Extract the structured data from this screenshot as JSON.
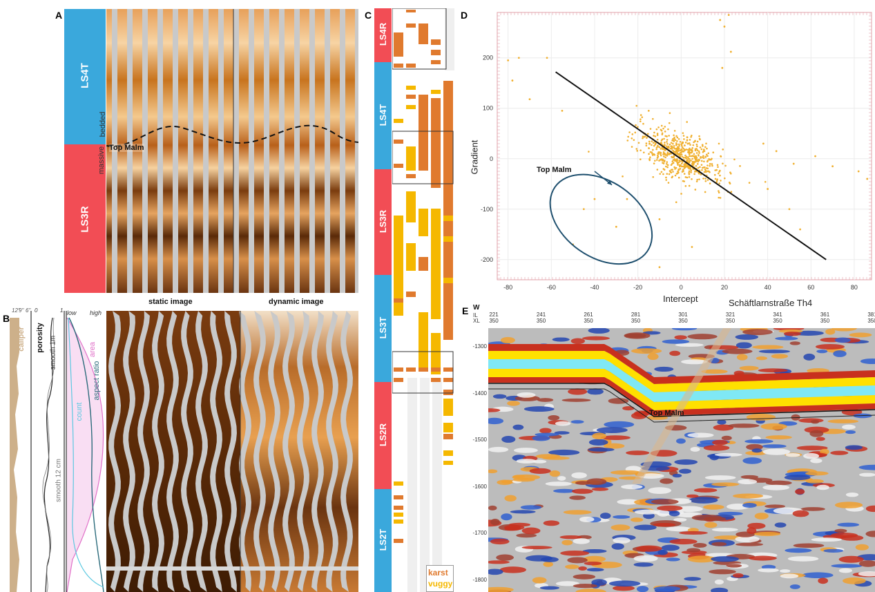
{
  "figure": {
    "panel_labels": [
      "A",
      "B",
      "C",
      "D",
      "E"
    ],
    "colors": {
      "LS_T": "#3aa8dc",
      "LS_R": "#f24d55",
      "karst": "#e07a2e",
      "vuggy": "#f5b800",
      "image_dark": "#5a2e08",
      "image_light": "#e8b070",
      "scatter": "#f0b030",
      "ellipse": "#1e4f6e",
      "seismic_red": "#c8301e",
      "seismic_blue": "#2446b0",
      "seismic_yellow": "#ffe000",
      "seismic_cyan": "#7fe8f5",
      "area_curve": "#e070c8",
      "aspect_curve": "#2a6a7a",
      "count_curve": "#5ac8e0",
      "caliper_fill": "#cdb08a"
    }
  },
  "panelA": {
    "zones": [
      {
        "label": "LS4T",
        "type": "T"
      },
      {
        "label": "LS3R",
        "type": "R"
      }
    ],
    "bedded": "bedded",
    "massive": "massive",
    "top_malm": "Top Malm",
    "static_caption": "static image",
    "dynamic_caption": "dynamic image"
  },
  "panelB": {
    "caliper": "caliper",
    "caliper_ticks": [
      "12\"",
      "9\"",
      "6\""
    ],
    "porosity": "porosity",
    "porosity_ticks": [
      "0",
      "1"
    ],
    "low": "low",
    "high": "high",
    "area": "area",
    "aspect_ratio": "aspect ratio",
    "count": "count",
    "smooth_1m": "smooth 1m",
    "smooth_12cm": "smooth 12 cm"
  },
  "panelC": {
    "zones": [
      {
        "label": "LS4R",
        "type": "R"
      },
      {
        "label": "LS4T",
        "type": "T"
      },
      {
        "label": "LS3R",
        "type": "R"
      },
      {
        "label": "LS3T",
        "type": "T"
      },
      {
        "label": "LS2R",
        "type": "R"
      },
      {
        "label": "LS2T",
        "type": "T"
      }
    ],
    "legend": {
      "karst": "karst",
      "vuggy": "vuggy"
    }
  },
  "panelD": {
    "xlabel": "Intercept",
    "ylabel": "Gradient",
    "x_ticks": [
      "-80",
      "-60",
      "-40",
      "-20",
      "0",
      "20",
      "40",
      "60",
      "80"
    ],
    "y_ticks": [
      "200",
      "100",
      "0",
      "-100",
      "-200"
    ],
    "annotation": "Top Malm"
  },
  "panelE": {
    "well_name": "Schäftlarnstraße Th4",
    "direction": "W",
    "il_label": "IL",
    "xl_label": "XL",
    "il_values": [
      "221",
      "241",
      "261",
      "281",
      "301",
      "321",
      "341",
      "361",
      "381"
    ],
    "xl_values": [
      "350",
      "350",
      "350",
      "350",
      "350",
      "350",
      "350",
      "350",
      "350"
    ],
    "depth_ticks": [
      "-1300",
      "-1400",
      "-1500",
      "-1600",
      "-1700",
      "-1800"
    ],
    "horizon": "Top Malm"
  },
  "chart_data": {
    "type": "scatter",
    "title": "",
    "xlabel": "Intercept",
    "ylabel": "Gradient",
    "xlim": [
      -85,
      88
    ],
    "ylim": [
      -240,
      290
    ],
    "trend_line": {
      "x": [
        -58,
        67
      ],
      "y": [
        172,
        -200
      ]
    },
    "ellipse": {
      "cx": -37,
      "cy": -120,
      "rx": 26,
      "ry": 75,
      "angle_deg": 35
    },
    "outliers": [
      {
        "x": -80,
        "y": 195
      },
      {
        "x": -75,
        "y": 200
      },
      {
        "x": -62,
        "y": 200
      },
      {
        "x": -78,
        "y": 155
      },
      {
        "x": -70,
        "y": 118
      },
      {
        "x": -55,
        "y": 95
      },
      {
        "x": 22,
        "y": 285
      },
      {
        "x": 18,
        "y": 275
      },
      {
        "x": 20,
        "y": 262
      },
      {
        "x": 23,
        "y": 212
      },
      {
        "x": 19,
        "y": 180
      },
      {
        "x": -40,
        "y": -80
      },
      {
        "x": -45,
        "y": -100
      },
      {
        "x": -30,
        "y": -135
      },
      {
        "x": -50,
        "y": -170
      },
      {
        "x": -10,
        "y": -120
      },
      {
        "x": 5,
        "y": -175
      },
      {
        "x": -25,
        "y": -80
      },
      {
        "x": 40,
        "y": -60
      },
      {
        "x": 50,
        "y": -100
      },
      {
        "x": 55,
        "y": -140
      },
      {
        "x": 62,
        "y": 5
      },
      {
        "x": 70,
        "y": -15
      },
      {
        "x": 82,
        "y": -25
      },
      {
        "x": 86,
        "y": -40
      },
      {
        "x": 52,
        "y": -10
      },
      {
        "x": 38,
        "y": 30
      },
      {
        "x": 44,
        "y": 15
      },
      {
        "x": -10,
        "y": -215
      },
      {
        "x": -15,
        "y": 95
      }
    ],
    "cluster": {
      "center": [
        0,
        5
      ],
      "sd": [
        10,
        28
      ],
      "correlation": -0.55,
      "n": 620
    }
  }
}
